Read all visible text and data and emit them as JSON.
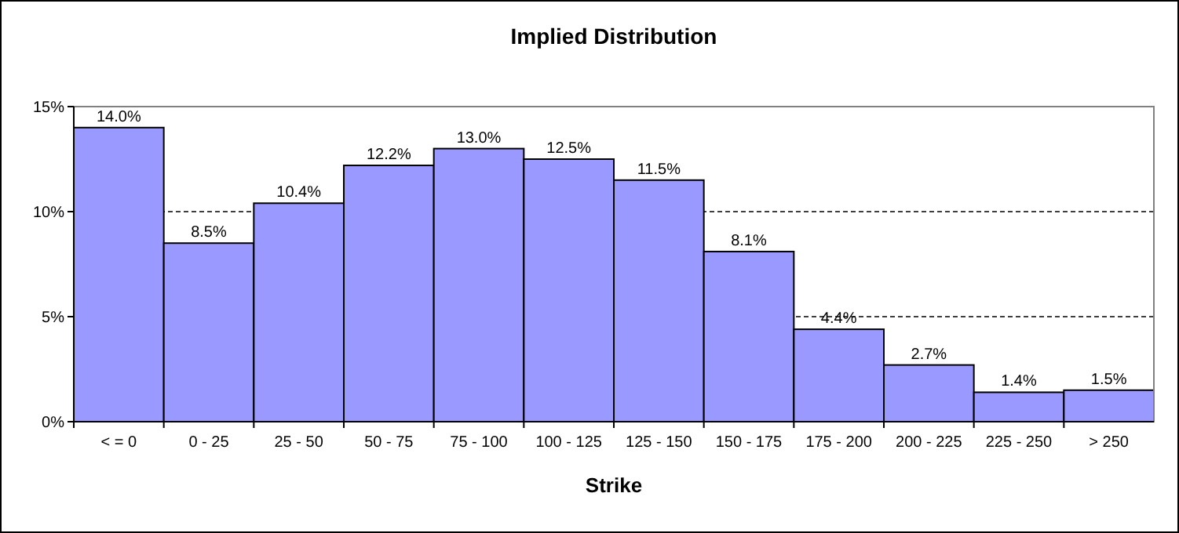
{
  "chart_data": {
    "type": "bar",
    "title": "Implied Distribution",
    "xlabel": "Strike",
    "categories": [
      "< = 0",
      "0 - 25",
      "25 - 50",
      "50 - 75",
      "75 - 100",
      "100 - 125",
      "125 - 150",
      "150 - 175",
      "175 - 200",
      "200 - 225",
      "225 - 250",
      "> 250"
    ],
    "values": [
      14.0,
      8.5,
      10.4,
      12.2,
      13.0,
      12.5,
      11.5,
      8.1,
      4.4,
      2.7,
      1.4,
      1.5
    ],
    "value_labels": [
      "14.0%",
      "8.5%",
      "10.4%",
      "12.2%",
      "13.0%",
      "12.5%",
      "11.5%",
      "8.1%",
      "4.4%",
      "2.7%",
      "1.4%",
      "1.5%"
    ],
    "color": "#9999ff",
    "ylim": [
      0,
      15
    ],
    "yticks": [
      {
        "value": 0,
        "label": "0%"
      },
      {
        "value": 5,
        "label": "5%"
      },
      {
        "value": 10,
        "label": "10%"
      },
      {
        "value": 15,
        "label": "15%"
      }
    ],
    "grid": "y"
  }
}
